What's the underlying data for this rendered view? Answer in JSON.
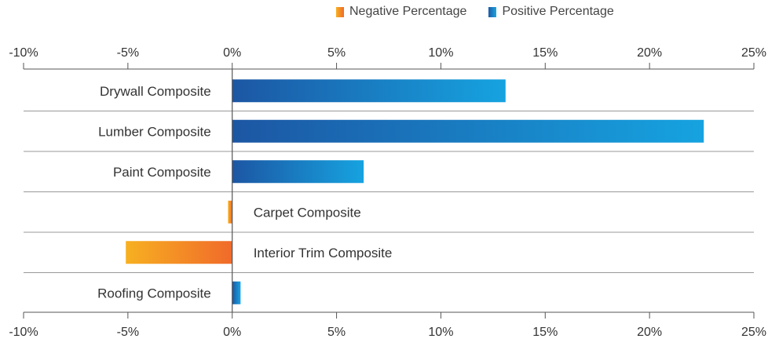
{
  "legend": {
    "negative_label": "Negative Percentage",
    "positive_label": "Positive Percentage"
  },
  "colors": {
    "negative_start": "#f7b021",
    "negative_end": "#f06a2a",
    "positive_start": "#1c56a3",
    "positive_end": "#16a3e0",
    "axis": "#555555",
    "grid": "#999999"
  },
  "chart_data": {
    "type": "bar",
    "orientation": "horizontal",
    "categories": [
      "Drywall Composite",
      "Lumber Composite",
      "Paint Composite",
      "Carpet Composite",
      "Interior Trim Composite",
      "Roofing Composite"
    ],
    "series": [
      {
        "name": "Percentage",
        "values": [
          13.1,
          22.6,
          6.3,
          -0.2,
          -5.1,
          0.4
        ]
      }
    ],
    "xlim": [
      -10,
      25
    ],
    "xticks": [
      -10,
      -5,
      0,
      5,
      10,
      15,
      20,
      25
    ],
    "xtick_labels": [
      "-10%",
      "-5%",
      "0%",
      "5%",
      "10%",
      "15%",
      "20%",
      "25%"
    ],
    "title": "",
    "xlabel": "",
    "ylabel": "",
    "legend_position": "top"
  }
}
